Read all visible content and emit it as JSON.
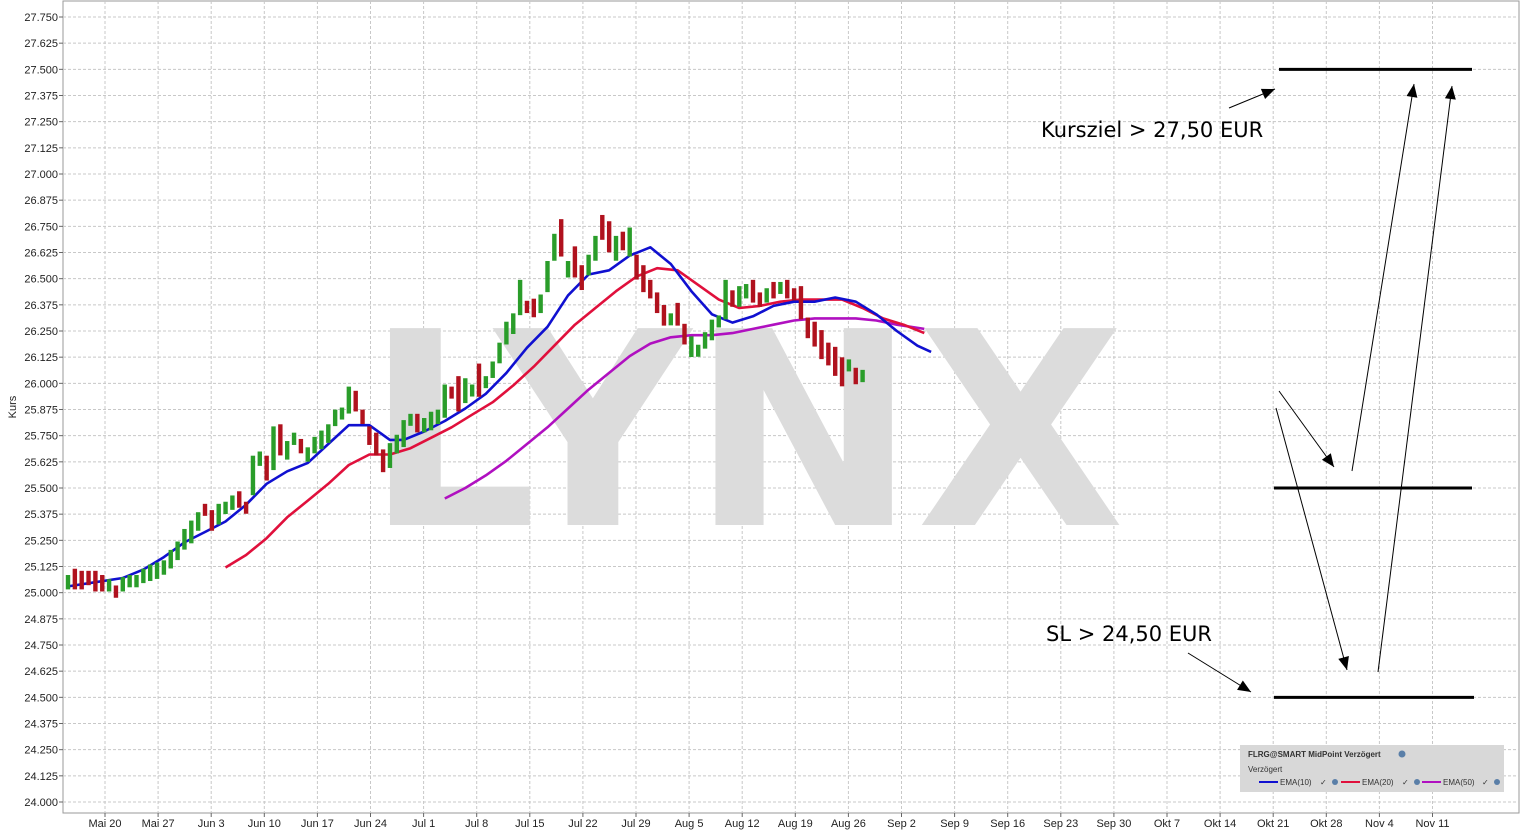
{
  "chart_data": {
    "type": "ohlc",
    "ylabel": "Kurs",
    "ylim": [
      24.0,
      27.75
    ],
    "y_ticks": [
      "24.000",
      "24.125",
      "24.250",
      "24.375",
      "24.500",
      "24.625",
      "24.750",
      "24.875",
      "25.000",
      "25.125",
      "25.250",
      "25.375",
      "25.500",
      "25.625",
      "25.750",
      "25.875",
      "26.000",
      "26.125",
      "26.250",
      "26.375",
      "26.500",
      "26.625",
      "26.750",
      "26.875",
      "27.000",
      "27.125",
      "27.250",
      "27.375",
      "27.500",
      "27.625",
      "27.750"
    ],
    "x_ticks": [
      "Mai 20",
      "Mai 27",
      "Jun 3",
      "Jun 10",
      "Jun 17",
      "Jun 24",
      "Jul 1",
      "Jul 8",
      "Jul 15",
      "Jul 22",
      "Jul 29",
      "Aug 5",
      "Aug 12",
      "Aug 19",
      "Aug 26",
      "Sep 2",
      "Sep 9",
      "Sep 16",
      "Sep 23",
      "Sep 30",
      "Okt 7",
      "Okt 14",
      "Okt 21",
      "Okt 28",
      "Nov 4",
      "Nov 11"
    ],
    "watermark": "LYNX",
    "colors": {
      "up": "#2a9d2a",
      "down": "#b0121e",
      "ema10": "#1010d0",
      "ema20": "#e0103c",
      "ema50": "#b010c0",
      "grid": "#c8c8c8"
    },
    "candles": [
      [
        25.03,
        25.07
      ],
      [
        25.1,
        25.03
      ],
      [
        25.09,
        25.03
      ],
      [
        25.09,
        25.05
      ],
      [
        25.09,
        25.02
      ],
      [
        25.07,
        25.02
      ],
      [
        25.02,
        25.05
      ],
      [
        25.02,
        24.99
      ],
      [
        25.02,
        25.06
      ],
      [
        25.04,
        25.07
      ],
      [
        25.04,
        25.07
      ],
      [
        25.06,
        25.1
      ],
      [
        25.07,
        25.12
      ],
      [
        25.08,
        25.13
      ],
      [
        25.1,
        25.14
      ],
      [
        25.13,
        25.19
      ],
      [
        25.17,
        25.23
      ],
      [
        25.22,
        25.29
      ],
      [
        25.25,
        25.33
      ],
      [
        25.31,
        25.37
      ],
      [
        25.41,
        25.39
      ],
      [
        25.38,
        25.31
      ],
      [
        25.34,
        25.41
      ],
      [
        25.39,
        25.42
      ],
      [
        25.41,
        25.45
      ],
      [
        25.47,
        25.42
      ],
      [
        25.42,
        25.4
      ],
      [
        25.48,
        25.64
      ],
      [
        25.62,
        25.66
      ],
      [
        25.64,
        25.55
      ],
      [
        25.6,
        25.78
      ],
      [
        25.79,
        25.67
      ],
      [
        25.65,
        25.71
      ],
      [
        25.72,
        25.75
      ],
      [
        25.72,
        25.68
      ],
      [
        25.64,
        25.68
      ],
      [
        25.68,
        25.73
      ],
      [
        25.7,
        25.76
      ],
      [
        25.73,
        25.79
      ],
      [
        25.81,
        25.86
      ],
      [
        25.85,
        25.87
      ],
      [
        25.87,
        25.97
      ],
      [
        25.95,
        25.88
      ],
      [
        25.86,
        25.82
      ],
      [
        25.78,
        25.72
      ],
      [
        25.75,
        25.67
      ],
      [
        25.67,
        25.59
      ],
      [
        25.61,
        25.7
      ],
      [
        25.68,
        25.74
      ],
      [
        25.71,
        25.81
      ],
      [
        25.82,
        25.84
      ],
      [
        25.84,
        25.78
      ],
      [
        25.78,
        25.82
      ],
      [
        25.79,
        25.85
      ],
      [
        25.82,
        25.86
      ],
      [
        25.85,
        25.98
      ],
      [
        25.97,
        25.95
      ],
      [
        26.02,
        25.88
      ],
      [
        25.92,
        26.01
      ],
      [
        25.97,
        25.98
      ],
      [
        26.08,
        25.95
      ],
      [
        26.0,
        26.02
      ],
      [
        26.04,
        26.09
      ],
      [
        26.11,
        26.18
      ],
      [
        26.2,
        26.28
      ],
      [
        26.25,
        26.32
      ],
      [
        26.34,
        26.48
      ],
      [
        26.38,
        26.35
      ],
      [
        26.39,
        26.33
      ],
      [
        26.35,
        26.41
      ],
      [
        26.45,
        26.57
      ],
      [
        26.6,
        26.7
      ],
      [
        26.77,
        26.62
      ],
      [
        26.52,
        26.57
      ],
      [
        26.64,
        26.52
      ],
      [
        26.55,
        26.46
      ],
      [
        26.53,
        26.6
      ],
      [
        26.6,
        26.69
      ],
      [
        26.79,
        26.7
      ],
      [
        26.76,
        26.64
      ],
      [
        26.6,
        26.69
      ],
      [
        26.71,
        26.65
      ],
      [
        26.62,
        26.73
      ],
      [
        26.6,
        26.51
      ],
      [
        26.55,
        26.45
      ],
      [
        26.48,
        26.42
      ],
      [
        26.42,
        26.35
      ],
      [
        26.36,
        26.29
      ],
      [
        26.31,
        26.32
      ],
      [
        26.37,
        26.29
      ],
      [
        26.27,
        26.2
      ],
      [
        26.14,
        26.21
      ],
      [
        26.17,
        26.17
      ],
      [
        26.18,
        26.23
      ],
      [
        26.22,
        26.29
      ],
      [
        26.29,
        26.31
      ],
      [
        26.32,
        26.48
      ],
      [
        26.43,
        26.38
      ],
      [
        26.38,
        26.45
      ],
      [
        26.42,
        26.46
      ],
      [
        26.48,
        26.4
      ],
      [
        26.42,
        26.38
      ],
      [
        26.4,
        26.44
      ],
      [
        26.47,
        26.42
      ],
      [
        26.45,
        26.47
      ],
      [
        26.48,
        26.42
      ],
      [
        26.44,
        26.41
      ],
      [
        26.45,
        26.32
      ],
      [
        26.3,
        26.23
      ],
      [
        26.28,
        26.19
      ],
      [
        26.24,
        26.13
      ],
      [
        26.18,
        26.1
      ],
      [
        26.16,
        26.05
      ],
      [
        26.11,
        26.0
      ],
      [
        26.1,
        26.1
      ],
      [
        26.06,
        26.01
      ],
      [
        26.02,
        26.05
      ]
    ],
    "ema10": [
      [
        0,
        25.03
      ],
      [
        4,
        25.05
      ],
      [
        8,
        25.07
      ],
      [
        11,
        25.11
      ],
      [
        14,
        25.17
      ],
      [
        17,
        25.24
      ],
      [
        20,
        25.29
      ],
      [
        23,
        25.34
      ],
      [
        26,
        25.42
      ],
      [
        29,
        25.52
      ],
      [
        32,
        25.58
      ],
      [
        35,
        25.62
      ],
      [
        38,
        25.71
      ],
      [
        41,
        25.8
      ],
      [
        44,
        25.8
      ],
      [
        47,
        25.73
      ],
      [
        49,
        25.73
      ],
      [
        52,
        25.77
      ],
      [
        55,
        25.82
      ],
      [
        58,
        25.88
      ],
      [
        61,
        25.95
      ],
      [
        64,
        26.05
      ],
      [
        67,
        26.17
      ],
      [
        70,
        26.27
      ],
      [
        73,
        26.42
      ],
      [
        76,
        26.52
      ],
      [
        79,
        26.54
      ],
      [
        82,
        26.61
      ],
      [
        85,
        26.65
      ],
      [
        88,
        26.57
      ],
      [
        91,
        26.44
      ],
      [
        94,
        26.33
      ],
      [
        97,
        26.29
      ],
      [
        100,
        26.32
      ],
      [
        103,
        26.37
      ],
      [
        106,
        26.39
      ],
      [
        109,
        26.39
      ],
      [
        112,
        26.41
      ],
      [
        115,
        26.39
      ],
      [
        118,
        26.33
      ],
      [
        121,
        26.25
      ],
      [
        124,
        26.18
      ],
      [
        126,
        26.15
      ]
    ],
    "ema20": [
      [
        23,
        25.12
      ],
      [
        26,
        25.18
      ],
      [
        29,
        25.26
      ],
      [
        32,
        25.36
      ],
      [
        35,
        25.44
      ],
      [
        38,
        25.52
      ],
      [
        41,
        25.61
      ],
      [
        44,
        25.66
      ],
      [
        47,
        25.66
      ],
      [
        50,
        25.69
      ],
      [
        53,
        25.74
      ],
      [
        56,
        25.79
      ],
      [
        59,
        25.85
      ],
      [
        62,
        25.91
      ],
      [
        65,
        25.99
      ],
      [
        68,
        26.08
      ],
      [
        71,
        26.18
      ],
      [
        74,
        26.28
      ],
      [
        77,
        26.36
      ],
      [
        80,
        26.44
      ],
      [
        83,
        26.51
      ],
      [
        86,
        26.55
      ],
      [
        89,
        26.54
      ],
      [
        92,
        26.47
      ],
      [
        95,
        26.4
      ],
      [
        98,
        26.36
      ],
      [
        101,
        26.37
      ],
      [
        104,
        26.39
      ],
      [
        107,
        26.4
      ],
      [
        110,
        26.4
      ],
      [
        113,
        26.4
      ],
      [
        116,
        26.36
      ],
      [
        119,
        26.31
      ],
      [
        122,
        26.28
      ],
      [
        125,
        26.24
      ]
    ],
    "ema50": [
      [
        55,
        25.45
      ],
      [
        58,
        25.5
      ],
      [
        61,
        25.56
      ],
      [
        64,
        25.63
      ],
      [
        67,
        25.71
      ],
      [
        70,
        25.79
      ],
      [
        73,
        25.88
      ],
      [
        76,
        25.97
      ],
      [
        79,
        26.05
      ],
      [
        82,
        26.13
      ],
      [
        85,
        26.19
      ],
      [
        88,
        26.22
      ],
      [
        91,
        26.23
      ],
      [
        94,
        26.23
      ],
      [
        97,
        26.24
      ],
      [
        100,
        26.26
      ],
      [
        103,
        26.28
      ],
      [
        106,
        26.3
      ],
      [
        109,
        26.31
      ],
      [
        112,
        26.31
      ],
      [
        115,
        26.31
      ],
      [
        118,
        26.3
      ],
      [
        121,
        26.28
      ],
      [
        125,
        26.26
      ]
    ],
    "annotations": [
      {
        "text": "Kursziel > 27,50 EUR",
        "level": 27.5
      },
      {
        "text": "SL > 24,50 EUR",
        "level": 24.5
      },
      {
        "level": 25.5
      }
    ],
    "legend": {
      "title": "FLRG@SMART MidPoint Verzögert",
      "subtitle": "Verzögert",
      "items": [
        "EMA(10)",
        "EMA(20)",
        "EMA(50)"
      ]
    }
  }
}
